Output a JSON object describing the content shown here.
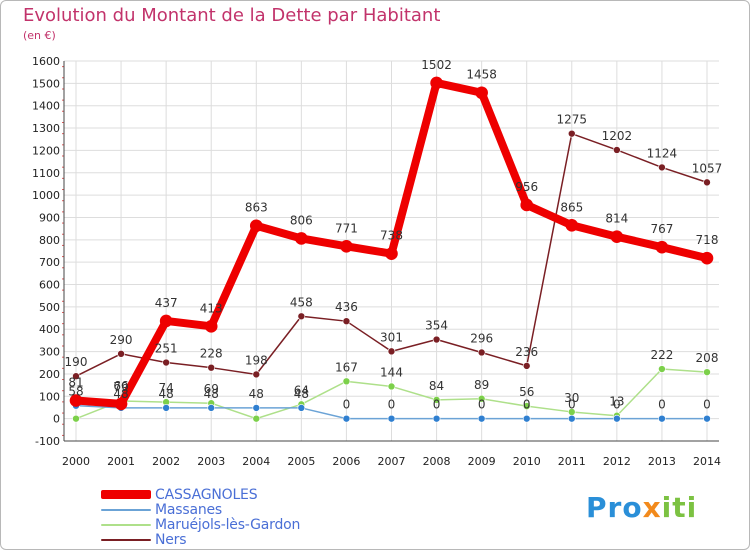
{
  "title": "Evolution du Montant de la Dette par Habitant",
  "unit_label": "(en €)",
  "logo": {
    "part1": "Pro",
    "part2": "x",
    "part3": "iti"
  },
  "colors": {
    "title": "#c2336b",
    "axis_text": "#222222",
    "grid": "#dddddd",
    "legend_text": "#4a6fd6"
  },
  "chart_data": {
    "type": "line",
    "x": [
      2000,
      2001,
      2002,
      2003,
      2004,
      2005,
      2006,
      2007,
      2008,
      2009,
      2010,
      2011,
      2012,
      2013,
      2014
    ],
    "ylim": [
      -100,
      1600
    ],
    "yticks": [
      -100,
      0,
      100,
      200,
      300,
      400,
      500,
      600,
      700,
      800,
      900,
      1000,
      1100,
      1200,
      1300,
      1400,
      1500,
      1600
    ],
    "grid": true,
    "legend_position": "bottom-left",
    "series": [
      {
        "name": "Ners",
        "color": "#7a1f24",
        "marker": "#7a1f24",
        "values": [
          190,
          290,
          251,
          228,
          198,
          458,
          436,
          301,
          354,
          296,
          236,
          1275,
          1202,
          1124,
          1057
        ]
      },
      {
        "name": "Maruéjols-lès-Gardon",
        "color": "#aee08a",
        "marker": "#7cd04a",
        "values": [
          0,
          79,
          74,
          69,
          0,
          64,
          167,
          144,
          84,
          89,
          56,
          30,
          13,
          222,
          208
        ]
      },
      {
        "name": "Massanes",
        "color": "#6ba3d6",
        "marker": "#2f7fd0",
        "values": [
          58,
          48,
          48,
          48,
          48,
          48,
          0,
          0,
          0,
          0,
          0,
          0,
          0,
          0,
          0
        ]
      },
      {
        "name": "CASSAGNOLES",
        "color": "#ee0000",
        "marker": "#ee0000",
        "values": [
          81,
          66,
          437,
          413,
          863,
          806,
          771,
          738,
          1502,
          1458,
          956,
          865,
          814,
          767,
          718
        ]
      }
    ],
    "data_labels": {
      "Ners": [
        "190",
        "290",
        "251",
        "228",
        "198",
        "458",
        "436",
        "301",
        "354",
        "296",
        "236",
        "1275",
        "1202",
        "1124",
        "1057"
      ],
      "Maruéjols-lès-Gardon": [
        "",
        "79",
        "74",
        "69",
        "",
        "64",
        "167",
        "144",
        "84",
        "89",
        "56",
        "30",
        "13",
        "222",
        "208"
      ],
      "Massanes": [
        "58",
        "48",
        "48",
        "48",
        "48",
        "48",
        "0",
        "0",
        "0",
        "0",
        "0",
        "0",
        "0",
        "0",
        "0"
      ],
      "CASSAGNOLES": [
        "81",
        "66",
        "437",
        "413",
        "863",
        "806",
        "771",
        "738",
        "1502",
        "1458",
        "956",
        "865",
        "814",
        "767",
        "718"
      ]
    }
  },
  "legend": [
    {
      "label": "CASSAGNOLES",
      "color": "#ee0000",
      "weight": 8
    },
    {
      "label": "Massanes",
      "color": "#6ba3d6",
      "weight": 2
    },
    {
      "label": "Maruéjols-lès-Gardon",
      "color": "#aee08a",
      "weight": 2
    },
    {
      "label": "Ners",
      "color": "#7a1f24",
      "weight": 2
    }
  ]
}
